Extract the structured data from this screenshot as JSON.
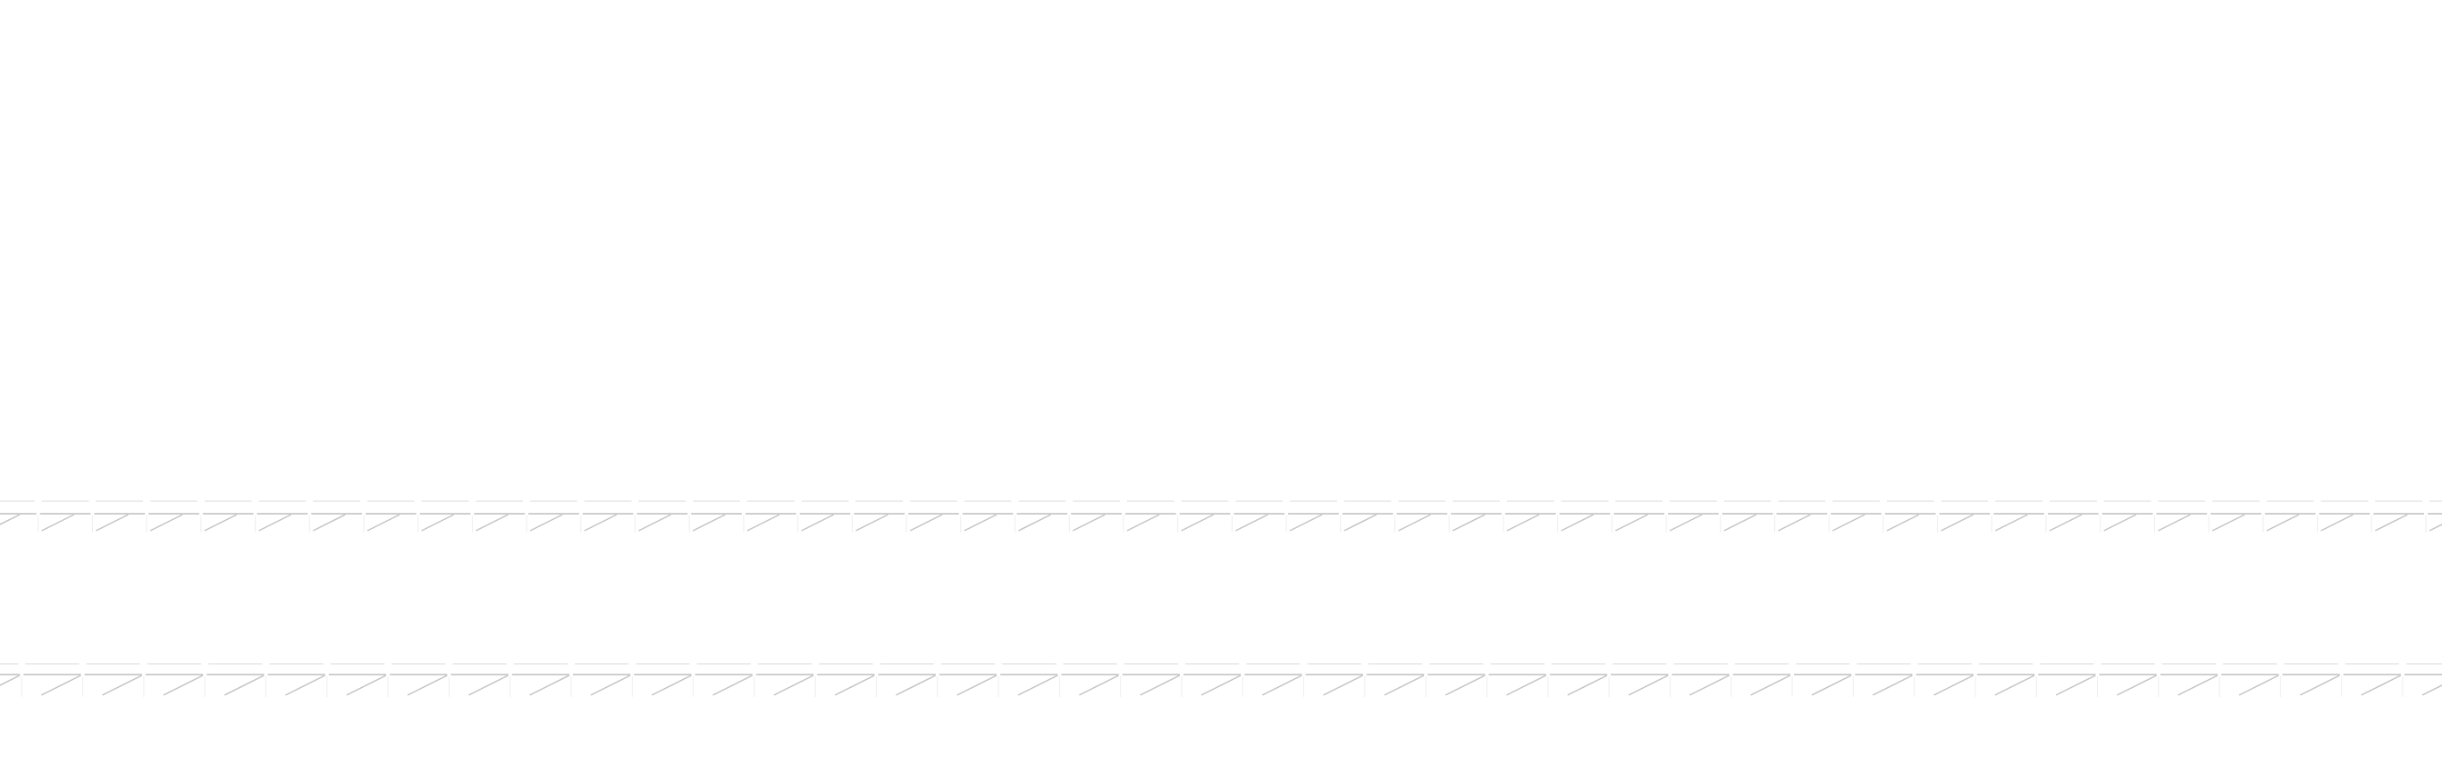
{
  "page": {
    "background_color": "#ffffff"
  },
  "strips": {
    "line_color_light": "#e6e6e6",
    "line_color": "#cfcfcf",
    "slash_color": "#c4c4c4",
    "top_tile_count": 45,
    "bottom_tile_count": 40
  }
}
